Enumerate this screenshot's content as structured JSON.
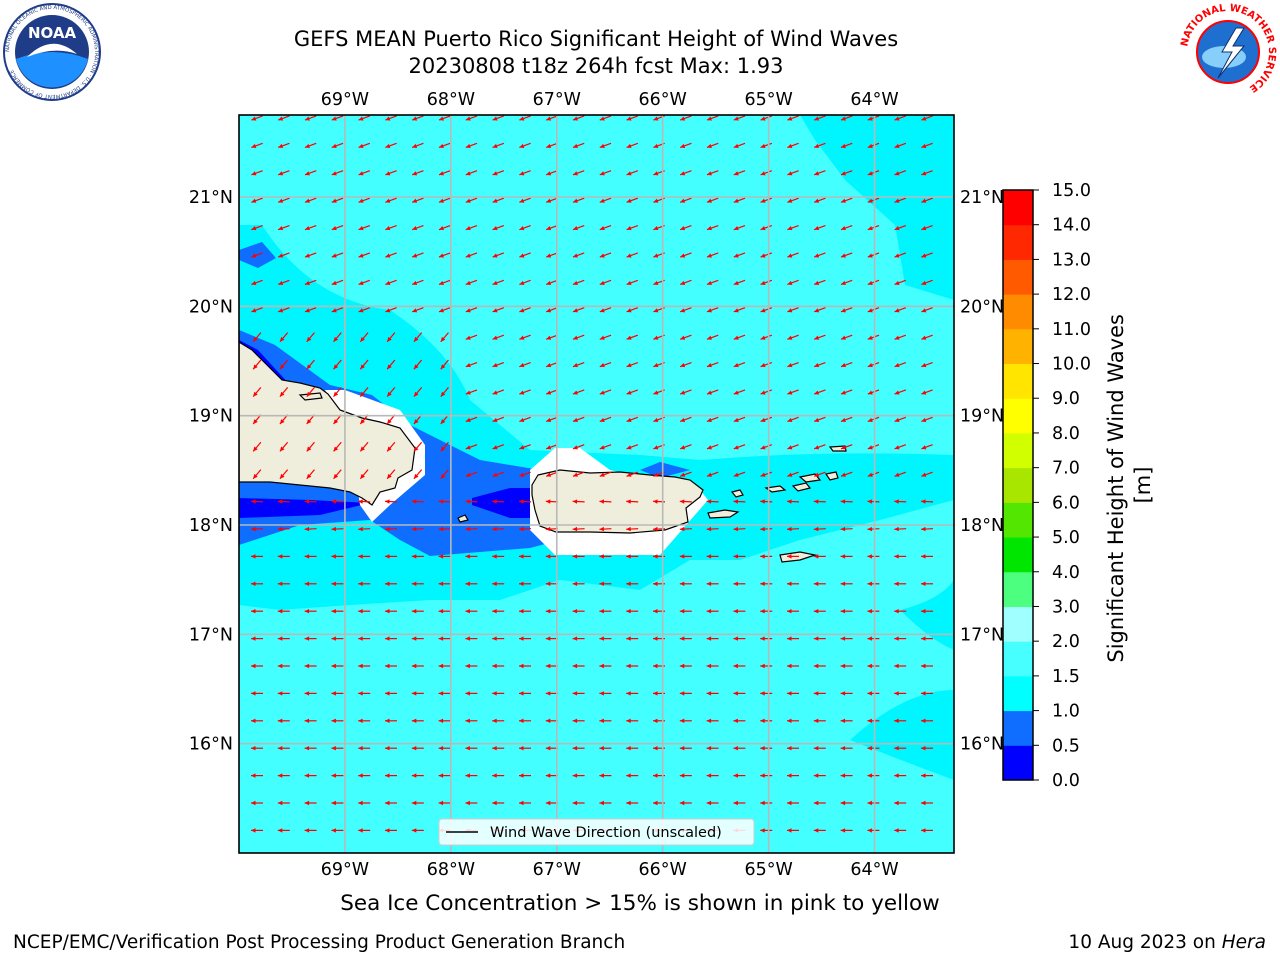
{
  "header": {
    "title": "GEFS MEAN Puerto Rico Significant Height of Wind Waves",
    "subtitle": "20230808 t18z 264h fcst   Max: 1.93"
  },
  "map": {
    "lon_labels": [
      "69°W",
      "68°W",
      "67°W",
      "66°W",
      "65°W",
      "64°W"
    ],
    "lat_labels": [
      "21°N",
      "20°N",
      "19°N",
      "18°N",
      "17°N",
      "16°N"
    ],
    "lon_values": [
      -69,
      -68,
      -67,
      -66,
      -65,
      -64
    ],
    "lat_values": [
      21,
      20,
      19,
      18,
      17,
      16
    ],
    "extent": {
      "lon_min": -70,
      "lon_max": -63.25,
      "lat_min": 15,
      "lat_max": 21.75
    },
    "grid": true,
    "vector_legend": "Wind Wave Direction (unscaled)",
    "vector_color": "#ff0000",
    "land_color": "#efeedc",
    "background_color": "#44ffff"
  },
  "colorbar": {
    "label": "Significant Height of Wind Waves [m]",
    "ticks": [
      "0.0",
      "0.5",
      "1.0",
      "1.5",
      "2.0",
      "3.0",
      "4.0",
      "5.0",
      "6.0",
      "7.0",
      "8.0",
      "9.0",
      "10.0",
      "11.0",
      "12.0",
      "13.0",
      "14.0",
      "15.0"
    ],
    "colors": [
      "#0000ff",
      "#0f6eff",
      "#00ffff",
      "#48ffff",
      "#a0ffff",
      "#4dff7f",
      "#00e600",
      "#52e600",
      "#a8e600",
      "#d2ff00",
      "#ffff00",
      "#ffe500",
      "#ffb200",
      "#ff8c00",
      "#ff5a00",
      "#ff2800",
      "#ff0000"
    ]
  },
  "footer": {
    "note": "Sea Ice Concentration > 15% is shown in pink to yellow",
    "left": "NCEP/EMC/Verification Post Processing Product Generation Branch",
    "date": "10 Aug 2023 on",
    "host": "Hera"
  },
  "logos": {
    "noaa_text": "NOAA",
    "noaa_ring": "NATIONAL OCEANIC AND ATMOSPHERIC ADMINISTRATION · U.S. DEPARTMENT OF COMMERCE",
    "nws_ring": "NATIONAL WEATHER SERVICE"
  }
}
